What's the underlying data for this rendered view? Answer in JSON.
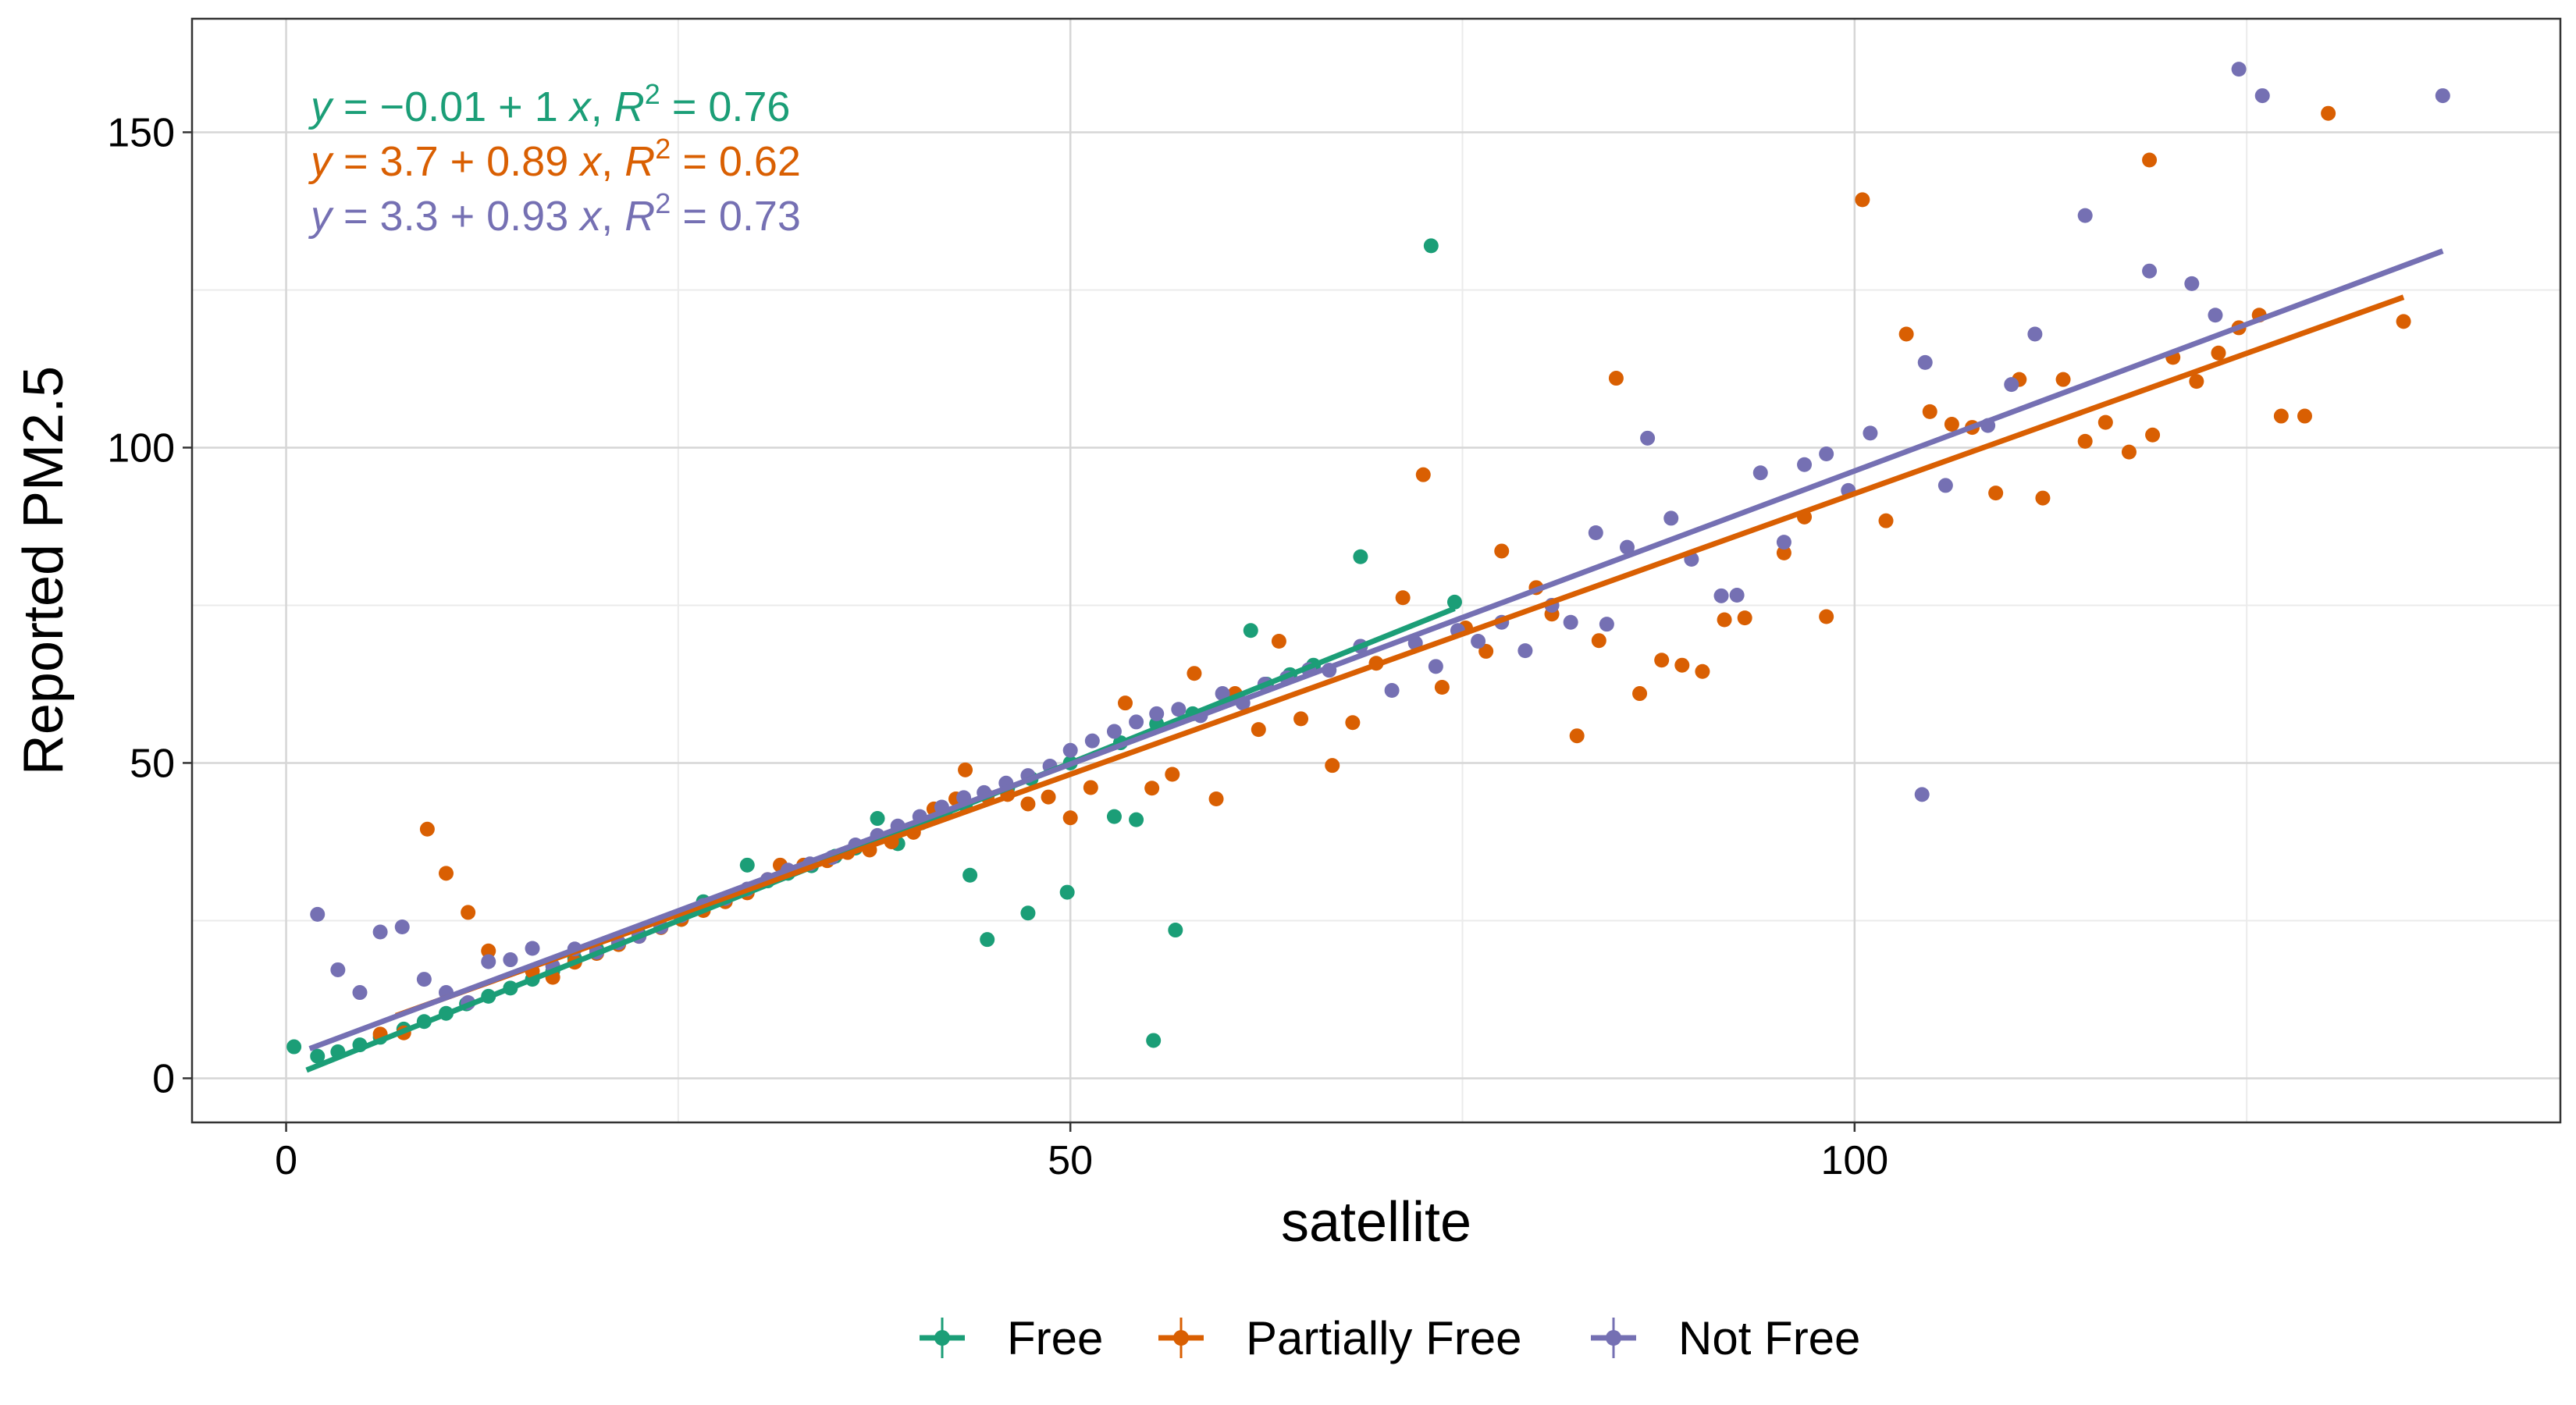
{
  "chart_data": {
    "type": "scatter",
    "xlabel": "satellite",
    "ylabel": "Reported PM2.5",
    "xlim": [
      -6,
      145
    ],
    "ylim": [
      -7,
      168
    ],
    "x_ticks": [
      0,
      50,
      100
    ],
    "y_ticks": [
      0,
      50,
      100,
      150
    ],
    "x_minor": [
      25,
      75,
      125
    ],
    "y_minor": [
      25,
      75,
      125
    ],
    "grid": true,
    "legend_position": "bottom",
    "series": [
      {
        "name": "Free",
        "color": "#1B9E77",
        "fit": {
          "intercept": -0.01,
          "slope": 1,
          "x_range": [
            1.3,
            74.5
          ]
        },
        "equation": {
          "intercept": "−0.01",
          "slope": "1",
          "r2": "0.76"
        },
        "points": [
          [
            0.5,
            5
          ],
          [
            2,
            3.5
          ],
          [
            3.3,
            4.2
          ],
          [
            4.7,
            5.3
          ],
          [
            6,
            6.5
          ],
          [
            7.5,
            7.8
          ],
          [
            8.8,
            9
          ],
          [
            10.2,
            10.3
          ],
          [
            11.5,
            11.8
          ],
          [
            12.9,
            13
          ],
          [
            14.3,
            14.3
          ],
          [
            15.7,
            15.7
          ],
          [
            17,
            17
          ],
          [
            18.4,
            19
          ],
          [
            19.8,
            20.5
          ],
          [
            21.2,
            21.5
          ],
          [
            22.5,
            22.8
          ],
          [
            23.9,
            24
          ],
          [
            25.2,
            25.2
          ],
          [
            26.6,
            28
          ],
          [
            28,
            28.5
          ],
          [
            29.4,
            33.8
          ],
          [
            30.7,
            31.3
          ],
          [
            32,
            32.5
          ],
          [
            33.5,
            33.7
          ],
          [
            35,
            35.2
          ],
          [
            36.3,
            36.5
          ],
          [
            37.7,
            41.2
          ],
          [
            39,
            37.2
          ],
          [
            40.5,
            40.5
          ],
          [
            42,
            42
          ],
          [
            43.3,
            43.3
          ],
          [
            43.6,
            32.2
          ],
          [
            44.7,
            22
          ],
          [
            46,
            46
          ],
          [
            47.3,
            26.2
          ],
          [
            47.5,
            47.5
          ],
          [
            49.8,
            29.5
          ],
          [
            50,
            50
          ],
          [
            52.8,
            41.5
          ],
          [
            53.2,
            53.2
          ],
          [
            54.2,
            41
          ],
          [
            55.3,
            6
          ],
          [
            55.5,
            56.2
          ],
          [
            56.7,
            23.5
          ],
          [
            57.8,
            57.8
          ],
          [
            60.5,
            60.5
          ],
          [
            61.5,
            71
          ],
          [
            62.5,
            62.5
          ],
          [
            64,
            64
          ],
          [
            65.5,
            65.5
          ],
          [
            68.5,
            82.7
          ],
          [
            73,
            132
          ],
          [
            74.5,
            75.5
          ]
        ]
      },
      {
        "name": "Partially Free",
        "color": "#D95F02",
        "fit": {
          "intercept": 3.7,
          "slope": 0.89,
          "x_range": [
            7,
            135
          ]
        },
        "equation": {
          "intercept": "3.7",
          "slope": "0.89",
          "r2": "0.62"
        },
        "points": [
          [
            6,
            7
          ],
          [
            7.5,
            7.2
          ],
          [
            9,
            39.5
          ],
          [
            10.2,
            32.5
          ],
          [
            11.6,
            26.3
          ],
          [
            12.9,
            20.2
          ],
          [
            15.7,
            17
          ],
          [
            17,
            16
          ],
          [
            18.4,
            18.4
          ],
          [
            19.8,
            19.8
          ],
          [
            21.2,
            21.2
          ],
          [
            22.5,
            22.5
          ],
          [
            23.9,
            23.9
          ],
          [
            25.2,
            25.2
          ],
          [
            26.6,
            26.6
          ],
          [
            28,
            28
          ],
          [
            29.4,
            29.4
          ],
          [
            30.7,
            31.5
          ],
          [
            31.5,
            33.8
          ],
          [
            33,
            33.8
          ],
          [
            34.5,
            34.5
          ],
          [
            35.8,
            35.8
          ],
          [
            37.2,
            36.2
          ],
          [
            38.6,
            37.5
          ],
          [
            40,
            39
          ],
          [
            41.3,
            42.7
          ],
          [
            42.7,
            44.3
          ],
          [
            43.3,
            48.9
          ],
          [
            44.7,
            44.7
          ],
          [
            46,
            45
          ],
          [
            47.3,
            43.5
          ],
          [
            48.6,
            44.6
          ],
          [
            50,
            41.3
          ],
          [
            51.3,
            46.1
          ],
          [
            53.5,
            59.5
          ],
          [
            55.2,
            46
          ],
          [
            56.5,
            48.2
          ],
          [
            57.9,
            64.2
          ],
          [
            59.3,
            44.3
          ],
          [
            60.5,
            61
          ],
          [
            62,
            55.3
          ],
          [
            63.3,
            69.3
          ],
          [
            64.7,
            57
          ],
          [
            66.7,
            49.6
          ],
          [
            68,
            56.4
          ],
          [
            69.5,
            65.8
          ],
          [
            71.2,
            76.2
          ],
          [
            72.5,
            95.7
          ],
          [
            73.7,
            62
          ],
          [
            75.2,
            71.4
          ],
          [
            76.5,
            67.7
          ],
          [
            77.5,
            83.6
          ],
          [
            79.7,
            77.8
          ],
          [
            80.7,
            73.6
          ],
          [
            82.3,
            54.3
          ],
          [
            83.7,
            69.4
          ],
          [
            84.8,
            111
          ],
          [
            86.3,
            61
          ],
          [
            87.7,
            66.3
          ],
          [
            89,
            65.5
          ],
          [
            90.3,
            64.5
          ],
          [
            91.7,
            72.7
          ],
          [
            93,
            73
          ],
          [
            95.5,
            83.3
          ],
          [
            96.8,
            89
          ],
          [
            98.2,
            73.2
          ],
          [
            100.5,
            139.3
          ],
          [
            102,
            88.4
          ],
          [
            103.3,
            118
          ],
          [
            104.8,
            105.7
          ],
          [
            106.2,
            103.7
          ],
          [
            107.5,
            103.2
          ],
          [
            109,
            92.8
          ],
          [
            110.5,
            110.8
          ],
          [
            112,
            92
          ],
          [
            113.3,
            110.8
          ],
          [
            114.7,
            101
          ],
          [
            116,
            104
          ],
          [
            117.5,
            99.3
          ],
          [
            118.8,
            145.6
          ],
          [
            119,
            102
          ],
          [
            120.3,
            114.3
          ],
          [
            121.8,
            110.5
          ],
          [
            123.2,
            115
          ],
          [
            124.5,
            119
          ],
          [
            125.8,
            121
          ],
          [
            127.2,
            105
          ],
          [
            128.7,
            105
          ],
          [
            130.2,
            153
          ],
          [
            135,
            120
          ]
        ]
      },
      {
        "name": "Not Free",
        "color": "#7570B3",
        "fit": {
          "intercept": 3.3,
          "slope": 0.93,
          "x_range": [
            1.5,
            137.5
          ]
        },
        "equation": {
          "intercept": "3.3",
          "slope": "0.93",
          "r2": "0.73"
        },
        "points": [
          [
            2,
            26
          ],
          [
            3.3,
            17.2
          ],
          [
            4.7,
            13.6
          ],
          [
            6,
            23.2
          ],
          [
            7.4,
            24
          ],
          [
            8.8,
            15.7
          ],
          [
            10.2,
            13.6
          ],
          [
            11.6,
            12
          ],
          [
            12.9,
            18.5
          ],
          [
            14.3,
            18.8
          ],
          [
            15.7,
            20.6
          ],
          [
            17,
            17.8
          ],
          [
            18.4,
            20.5
          ],
          [
            19.8,
            20
          ],
          [
            21.2,
            21.5
          ],
          [
            22.5,
            22.5
          ],
          [
            23.9,
            24
          ],
          [
            25.2,
            25.8
          ],
          [
            26.6,
            27.4
          ],
          [
            28,
            28.5
          ],
          [
            29.4,
            30
          ],
          [
            30.7,
            31.5
          ],
          [
            32,
            33
          ],
          [
            33.4,
            34
          ],
          [
            34.8,
            35
          ],
          [
            36.3,
            37
          ],
          [
            37.7,
            38.5
          ],
          [
            39,
            40
          ],
          [
            40.4,
            41.5
          ],
          [
            41.8,
            43
          ],
          [
            43.2,
            44.5
          ],
          [
            44.5,
            45.3
          ],
          [
            45.9,
            46.8
          ],
          [
            47.3,
            48
          ],
          [
            48.7,
            49.5
          ],
          [
            50,
            52
          ],
          [
            51.4,
            53.5
          ],
          [
            52.8,
            55
          ],
          [
            54.2,
            56.5
          ],
          [
            55.5,
            57.8
          ],
          [
            56.9,
            58.5
          ],
          [
            58.3,
            57.5
          ],
          [
            59.7,
            61
          ],
          [
            61,
            59.5
          ],
          [
            62.4,
            62.5
          ],
          [
            63.8,
            63.5
          ],
          [
            65.2,
            64.8
          ],
          [
            66.5,
            64.7
          ],
          [
            68.5,
            68.5
          ],
          [
            70.5,
            61.5
          ],
          [
            72,
            69
          ],
          [
            73.3,
            65.3
          ],
          [
            74.7,
            71
          ],
          [
            76,
            69.3
          ],
          [
            77.5,
            72.3
          ],
          [
            79,
            67.8
          ],
          [
            80.7,
            75
          ],
          [
            81.9,
            72.3
          ],
          [
            83.5,
            86.5
          ],
          [
            84.2,
            72
          ],
          [
            85.5,
            84.2
          ],
          [
            86.8,
            101.5
          ],
          [
            88.3,
            88.8
          ],
          [
            89.6,
            82.3
          ],
          [
            91.5,
            76.5
          ],
          [
            92.5,
            76.6
          ],
          [
            94,
            96
          ],
          [
            95.5,
            85
          ],
          [
            96.8,
            97.3
          ],
          [
            98.2,
            99
          ],
          [
            99.6,
            93.2
          ],
          [
            101,
            102.3
          ],
          [
            104.3,
            45
          ],
          [
            104.5,
            113.5
          ],
          [
            105.8,
            94
          ],
          [
            108.5,
            103.5
          ],
          [
            110,
            110
          ],
          [
            111.5,
            118
          ],
          [
            114.7,
            136.8
          ],
          [
            118.8,
            128
          ],
          [
            121.5,
            126
          ],
          [
            123,
            121
          ],
          [
            124.5,
            160
          ],
          [
            126,
            155.8
          ],
          [
            137.5,
            155.8
          ]
        ]
      }
    ]
  }
}
